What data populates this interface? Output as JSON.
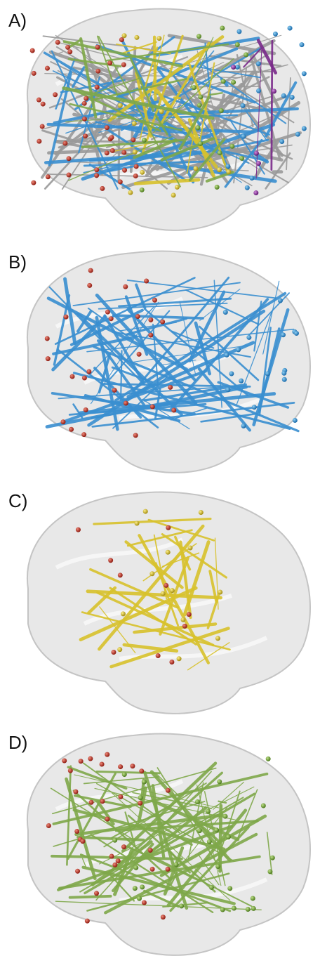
{
  "panels": [
    {
      "label": "A)"
    },
    {
      "label": "B)"
    },
    {
      "label": "C)"
    },
    {
      "label": "D)"
    }
  ]
}
